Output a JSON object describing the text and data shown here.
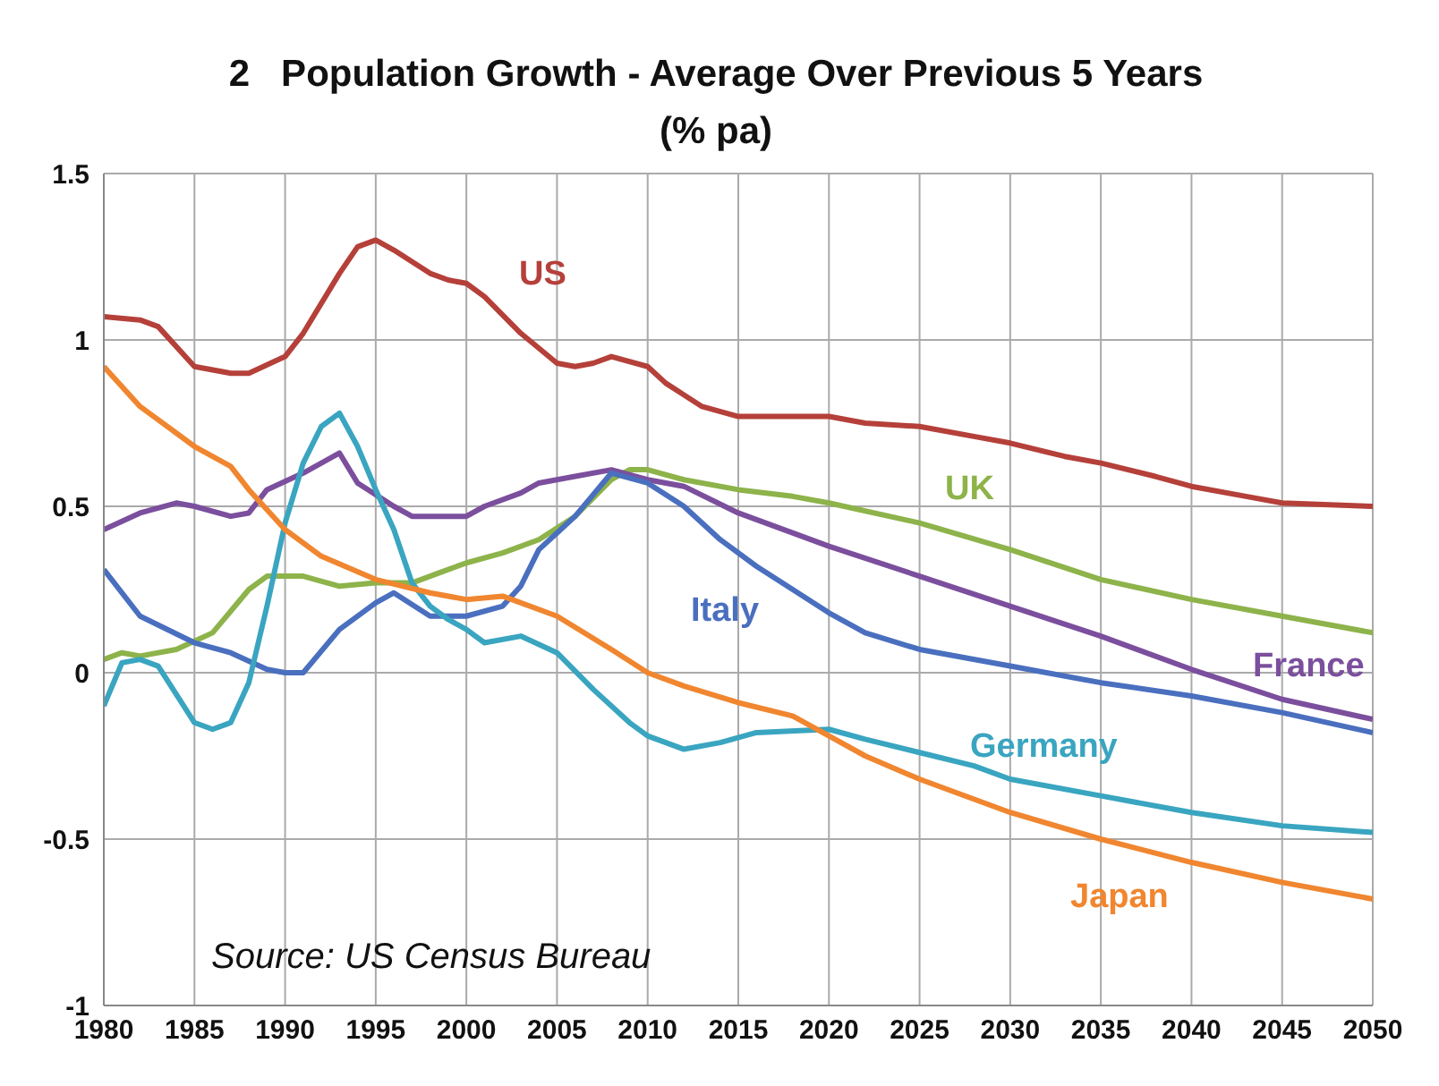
{
  "chart_data": {
    "type": "line",
    "title": "2   Population Growth - Average Over Previous 5 Years",
    "subtitle": "(% pa)",
    "annotations": [
      "Source: US Census Bureau"
    ],
    "xlim": [
      1980,
      2050
    ],
    "xticks": [
      1980,
      1985,
      1990,
      1995,
      2000,
      2005,
      2010,
      2015,
      2020,
      2025,
      2030,
      2035,
      2040,
      2045,
      2050
    ],
    "ylim": [
      -1,
      1.5
    ],
    "yticks": [
      -1,
      -0.5,
      0,
      0.5,
      1,
      1.5
    ],
    "grid": true,
    "marker": "none",
    "series": [
      {
        "name": "US",
        "color": "#b5403a",
        "x": [
          1980,
          1982,
          1983,
          1985,
          1987,
          1988,
          1990,
          1991,
          1993,
          1994,
          1995,
          1996,
          1998,
          1999,
          2000,
          2001,
          2003,
          2005,
          2006,
          2007,
          2008,
          2010,
          2011,
          2013,
          2015,
          2018,
          2020,
          2022,
          2025,
          2028,
          2030,
          2033,
          2035,
          2038,
          2040,
          2043,
          2045,
          2050
        ],
        "values": [
          1.07,
          1.06,
          1.04,
          0.92,
          0.9,
          0.9,
          0.95,
          1.02,
          1.2,
          1.28,
          1.3,
          1.27,
          1.2,
          1.18,
          1.17,
          1.13,
          1.02,
          0.93,
          0.92,
          0.93,
          0.95,
          0.92,
          0.87,
          0.8,
          0.77,
          0.77,
          0.77,
          0.75,
          0.74,
          0.71,
          0.69,
          0.65,
          0.63,
          0.59,
          0.56,
          0.53,
          0.51,
          0.5
        ]
      },
      {
        "name": "UK",
        "color": "#8db34a",
        "x": [
          1980,
          1981,
          1982,
          1984,
          1986,
          1988,
          1989,
          1991,
          1993,
          1995,
          1997,
          1999,
          2000,
          2002,
          2004,
          2006,
          2008,
          2009,
          2010,
          2012,
          2015,
          2018,
          2020,
          2025,
          2030,
          2035,
          2040,
          2045,
          2050
        ],
        "values": [
          0.04,
          0.06,
          0.05,
          0.07,
          0.12,
          0.25,
          0.29,
          0.29,
          0.26,
          0.27,
          0.27,
          0.31,
          0.33,
          0.36,
          0.4,
          0.47,
          0.58,
          0.61,
          0.61,
          0.58,
          0.55,
          0.53,
          0.51,
          0.45,
          0.37,
          0.28,
          0.22,
          0.17,
          0.12
        ]
      },
      {
        "name": "France",
        "color": "#7b4f9d",
        "x": [
          1980,
          1982,
          1984,
          1985,
          1987,
          1988,
          1989,
          1991,
          1993,
          1994,
          1996,
          1997,
          2000,
          2001,
          2003,
          2004,
          2006,
          2008,
          2010,
          2012,
          2015,
          2020,
          2025,
          2030,
          2035,
          2040,
          2045,
          2050
        ],
        "values": [
          0.43,
          0.48,
          0.51,
          0.5,
          0.47,
          0.48,
          0.55,
          0.6,
          0.66,
          0.57,
          0.5,
          0.47,
          0.47,
          0.5,
          0.54,
          0.57,
          0.59,
          0.61,
          0.58,
          0.56,
          0.48,
          0.38,
          0.29,
          0.2,
          0.11,
          0.01,
          -0.08,
          -0.14
        ]
      },
      {
        "name": "Italy",
        "color": "#4a6fbf",
        "x": [
          1980,
          1982,
          1985,
          1987,
          1989,
          1990,
          1991,
          1993,
          1995,
          1996,
          1998,
          2000,
          2002,
          2003,
          2004,
          2005,
          2006,
          2008,
          2010,
          2012,
          2014,
          2016,
          2018,
          2020,
          2022,
          2025,
          2030,
          2035,
          2040,
          2045,
          2050
        ],
        "values": [
          0.31,
          0.17,
          0.09,
          0.06,
          0.01,
          0.0,
          0.0,
          0.13,
          0.21,
          0.24,
          0.17,
          0.17,
          0.2,
          0.26,
          0.37,
          0.42,
          0.47,
          0.6,
          0.57,
          0.5,
          0.4,
          0.32,
          0.25,
          0.18,
          0.12,
          0.07,
          0.02,
          -0.03,
          -0.07,
          -0.12,
          -0.18
        ]
      },
      {
        "name": "Germany",
        "color": "#3aa5c0",
        "x": [
          1980,
          1981,
          1982,
          1983,
          1985,
          1986,
          1987,
          1988,
          1989,
          1990,
          1991,
          1992,
          1993,
          1994,
          1995,
          1996,
          1997,
          1998,
          1999,
          2000,
          2001,
          2003,
          2005,
          2007,
          2009,
          2010,
          2012,
          2014,
          2016,
          2020,
          2022,
          2025,
          2028,
          2030,
          2035,
          2040,
          2045,
          2050
        ],
        "values": [
          -0.1,
          0.03,
          0.04,
          0.02,
          -0.15,
          -0.17,
          -0.15,
          -0.03,
          0.2,
          0.45,
          0.63,
          0.74,
          0.78,
          0.68,
          0.55,
          0.43,
          0.27,
          0.2,
          0.16,
          0.13,
          0.09,
          0.11,
          0.06,
          -0.05,
          -0.15,
          -0.19,
          -0.23,
          -0.21,
          -0.18,
          -0.17,
          -0.2,
          -0.24,
          -0.28,
          -0.32,
          -0.37,
          -0.42,
          -0.46,
          -0.48
        ]
      },
      {
        "name": "Japan",
        "color": "#f0862f",
        "x": [
          1980,
          1982,
          1985,
          1987,
          1988,
          1990,
          1992,
          1995,
          1998,
          2000,
          2002,
          2005,
          2008,
          2010,
          2012,
          2015,
          2018,
          2020,
          2022,
          2025,
          2030,
          2035,
          2040,
          2045,
          2050
        ],
        "values": [
          0.92,
          0.8,
          0.68,
          0.62,
          0.55,
          0.43,
          0.35,
          0.28,
          0.24,
          0.22,
          0.23,
          0.17,
          0.07,
          0.0,
          -0.04,
          -0.09,
          -0.13,
          -0.19,
          -0.25,
          -0.32,
          -0.42,
          -0.5,
          -0.57,
          -0.63,
          -0.68
        ]
      }
    ]
  }
}
